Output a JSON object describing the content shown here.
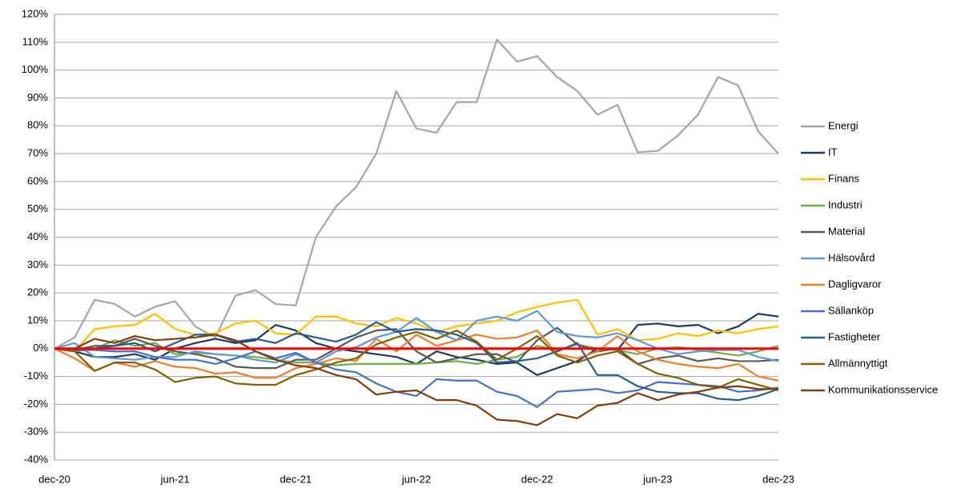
{
  "chart_data": {
    "type": "line",
    "categories": [
      "dec-20",
      null,
      null,
      null,
      null,
      null,
      "jun-21",
      null,
      null,
      null,
      null,
      null,
      "dec-21",
      null,
      null,
      null,
      null,
      null,
      "jun-22",
      null,
      null,
      null,
      null,
      null,
      "dec-22",
      null,
      null,
      null,
      null,
      null,
      "jun-23",
      null,
      null,
      null,
      null,
      null,
      "dec-23"
    ],
    "ylim": [
      -40,
      120
    ],
    "yticks": [
      {
        "value": -40,
        "label": "-40%"
      },
      {
        "value": -30,
        "label": "-30%"
      },
      {
        "value": -20,
        "label": "-20%"
      },
      {
        "value": -10,
        "label": "-10%"
      },
      {
        "value": 0,
        "label": "0%"
      },
      {
        "value": 10,
        "label": "10%"
      },
      {
        "value": 20,
        "label": "20%"
      },
      {
        "value": 30,
        "label": "30%"
      },
      {
        "value": 40,
        "label": "40%"
      },
      {
        "value": 50,
        "label": "50%"
      },
      {
        "value": 60,
        "label": "60%"
      },
      {
        "value": 70,
        "label": "70%"
      },
      {
        "value": 80,
        "label": "80%"
      },
      {
        "value": 90,
        "label": "90%"
      },
      {
        "value": 100,
        "label": "100%"
      },
      {
        "value": 110,
        "label": "110%"
      },
      {
        "value": 120,
        "label": "120%"
      }
    ],
    "grid": true,
    "legend": "right",
    "hline": {
      "y": 0,
      "color": "#ff0000"
    },
    "series": [
      {
        "name": "Energi",
        "color": "#a5a5a5",
        "values": [
          0,
          4,
          17.5,
          16,
          11.5,
          15,
          17,
          8,
          4,
          19,
          21,
          16,
          15.5,
          40,
          51,
          58,
          70,
          92.5,
          79,
          77.5,
          88.5,
          88.5,
          111,
          103,
          105,
          97.5,
          92.5,
          84,
          87.5,
          70.5,
          71,
          76.5,
          84,
          97.5,
          94.5,
          78,
          70
        ]
      },
      {
        "name": "IT",
        "color": "#1f3864",
        "values": [
          0,
          -1,
          -3,
          -3,
          -2,
          -4,
          0,
          2,
          3.5,
          2,
          3,
          8.5,
          6.5,
          2,
          0,
          -1,
          -2,
          -3,
          -5.5,
          -1,
          -3,
          -4,
          -5.5,
          -5,
          -9.5,
          -7,
          -4.5,
          0,
          -0.5,
          8.5,
          9,
          8,
          8.5,
          5.5,
          8,
          12.5,
          11.5
        ]
      },
      {
        "name": "Finans",
        "color": "#ffc000",
        "values": [
          0,
          -1,
          7,
          8,
          8.5,
          12.5,
          7,
          5,
          5.5,
          9,
          10,
          5.5,
          5,
          11.5,
          11.5,
          9,
          8,
          11,
          9,
          6,
          8,
          9,
          10,
          13,
          15,
          16.5,
          17.5,
          5,
          7,
          3,
          3.5,
          5.5,
          4.5,
          6.5,
          5.5,
          7,
          8
        ]
      },
      {
        "name": "Industri",
        "color": "#70ad47",
        "values": [
          0,
          -1,
          0,
          3,
          1,
          2,
          -2,
          -1.5,
          -2,
          -2.5,
          -3,
          -4,
          -5,
          -5,
          -6,
          -5.5,
          -5.5,
          -5.5,
          -5.5,
          -5,
          -4.5,
          -5.5,
          -4,
          -3,
          1,
          -0.5,
          1.5,
          0,
          -0.5,
          -2,
          0,
          0.5,
          -0.5,
          -1.5,
          -2.5,
          -1,
          1
        ]
      },
      {
        "name": "Material",
        "color": "#595959",
        "values": [
          0,
          -0.5,
          1,
          1,
          3.5,
          1,
          -1,
          -2,
          -3.5,
          -6.5,
          -7,
          -7,
          -4,
          -4,
          0,
          4,
          6.5,
          7,
          -1,
          -5,
          -3.5,
          -2,
          -2,
          -5,
          3,
          7.5,
          1.5,
          -1,
          0,
          -5.5,
          -3.5,
          -2.5,
          -4.5,
          -3.5,
          -4.5,
          -4.5,
          -4
        ]
      },
      {
        "name": "Hälsovård",
        "color": "#5b9bd5",
        "values": [
          0,
          2,
          -3,
          -3.5,
          -4,
          -3,
          -3,
          -1,
          -2,
          -2.5,
          -4,
          -5,
          -2,
          -5,
          -1,
          0.5,
          4,
          6,
          11,
          6,
          3,
          10,
          11.5,
          10,
          13.5,
          6,
          4.5,
          4,
          5.5,
          3,
          0,
          -2,
          -1,
          -0.5,
          -0.5,
          -3,
          -4.5
        ]
      },
      {
        "name": "Dagligvaror",
        "color": "#ed7d31",
        "values": [
          0,
          -3.5,
          -8,
          -5,
          -6.5,
          -4.5,
          -6.5,
          -7,
          -9,
          -8.5,
          -10.5,
          -10.5,
          -7,
          -5.5,
          -3.5,
          -4.5,
          3.5,
          -1,
          5,
          1,
          3,
          5,
          3.5,
          4,
          6.5,
          -2,
          -3.5,
          -1,
          4.5,
          -1,
          -4,
          -5.5,
          -6.5,
          -7,
          -5.5,
          -10,
          -11.5
        ]
      },
      {
        "name": "Sällanköp",
        "color": "#4472c4",
        "values": [
          0,
          -0.5,
          -0.5,
          -1,
          -1,
          -3,
          -4,
          -4,
          -5.5,
          -3.5,
          -1,
          -3.5,
          -1.5,
          -5,
          -7.5,
          -8.5,
          -12.5,
          -15.5,
          -17,
          -11,
          -11.5,
          -11.5,
          -15.5,
          -17,
          -21,
          -15.5,
          -15,
          -14.5,
          -16,
          -15,
          -12,
          -12.5,
          -13,
          -13.5,
          -15.5,
          -15,
          -14
        ]
      },
      {
        "name": "Fastigheter",
        "color": "#255e91",
        "values": [
          0,
          -0.5,
          0,
          1,
          2,
          -1,
          2,
          5,
          5,
          2.5,
          3.5,
          2,
          5.5,
          4,
          2.5,
          5,
          9.5,
          6,
          7,
          6.5,
          5,
          2,
          -5,
          -4.5,
          -3.5,
          -1,
          2,
          -9.5,
          -9.5,
          -13.5,
          -15.5,
          -16,
          -16,
          -18,
          -18.5,
          -17,
          -14.5
        ]
      },
      {
        "name": "Allmännyttigt",
        "color": "#806000",
        "values": [
          0,
          -1,
          -8,
          -5,
          -5,
          -7.5,
          -12,
          -10.5,
          -10,
          -12.5,
          -13,
          -13,
          -9.5,
          -7.5,
          -5,
          -3.5,
          1.5,
          4,
          6,
          3.5,
          6.5,
          2.5,
          -4,
          0,
          4.5,
          -2.5,
          -5,
          -2.5,
          -1,
          -5.5,
          -9,
          -10.5,
          -13,
          -14,
          -11,
          -13,
          -15
        ]
      },
      {
        "name": "Kommunikationsservice",
        "color": "#843c0c",
        "values": [
          0,
          0,
          3.5,
          2,
          4.5,
          3,
          3.5,
          4,
          5,
          3,
          -1,
          -4,
          -6,
          -7,
          -9.5,
          -11,
          -16.5,
          -15.5,
          -15,
          -18.5,
          -18.5,
          -20.5,
          -25.5,
          -26,
          -27.5,
          -23.5,
          -25,
          -20.5,
          -19.5,
          -16,
          -18.5,
          -16.5,
          -15.5,
          -14,
          -13.5,
          -14.5,
          -14.5
        ]
      }
    ]
  }
}
